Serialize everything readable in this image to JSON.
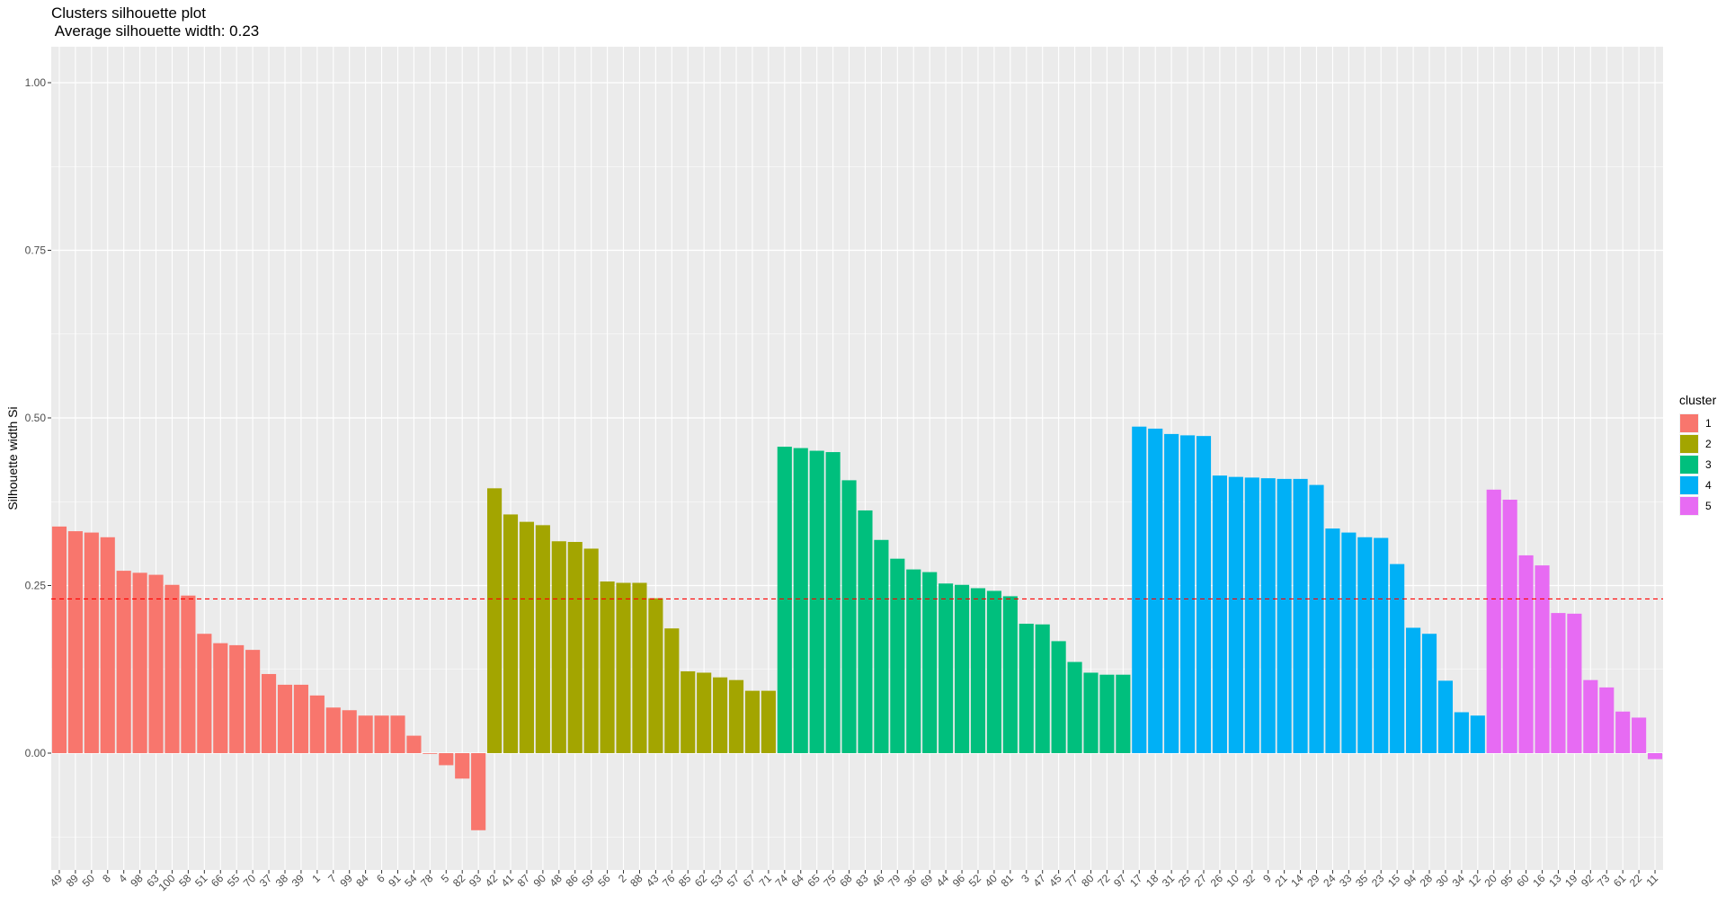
{
  "chart_data": {
    "type": "bar",
    "title": "Clusters silhouette plot",
    "subtitle": " Average silhouette width: 0.23",
    "xlabel": "",
    "ylabel": "Silhouette width Si",
    "ylim": [
      -0.115,
      1.05
    ],
    "yticks": [
      "0.00",
      "0.25",
      "0.50",
      "0.75",
      "1.00"
    ],
    "ytick_values": [
      0,
      0.25,
      0.5,
      0.75,
      1.0
    ],
    "average_line": 0.23,
    "grid": true,
    "legend": {
      "title": "cluster",
      "placement": "right",
      "entries": [
        {
          "label": "1",
          "color": "#F8766D"
        },
        {
          "label": "2",
          "color": "#A3A500"
        },
        {
          "label": "3",
          "color": "#00BF7D"
        },
        {
          "label": "4",
          "color": "#00B0F6"
        },
        {
          "label": "5",
          "color": "#E76BF3"
        }
      ]
    },
    "categories": [
      "49",
      "89",
      "50",
      "8",
      "4",
      "98",
      "63",
      "100",
      "58",
      "51",
      "66",
      "55",
      "70",
      "37",
      "38",
      "39",
      "1",
      "7",
      "99",
      "84",
      "6",
      "91",
      "54",
      "78",
      "5",
      "82",
      "93",
      "42",
      "41",
      "87",
      "90",
      "48",
      "86",
      "59",
      "56",
      "2",
      "88",
      "43",
      "76",
      "85",
      "62",
      "53",
      "57",
      "67",
      "71",
      "74",
      "64",
      "65",
      "75",
      "68",
      "83",
      "46",
      "79",
      "36",
      "69",
      "44",
      "96",
      "52",
      "40",
      "81",
      "3",
      "47",
      "45",
      "77",
      "80",
      "72",
      "97",
      "17",
      "18",
      "31",
      "25",
      "27",
      "26",
      "10",
      "32",
      "9",
      "21",
      "14",
      "29",
      "24",
      "33",
      "35",
      "23",
      "15",
      "94",
      "28",
      "30",
      "34",
      "12",
      "20",
      "95",
      "60",
      "16",
      "13",
      "19",
      "92",
      "73",
      "61",
      "22",
      "11"
    ],
    "values": [
      0.338,
      0.331,
      0.329,
      0.322,
      0.272,
      0.269,
      0.266,
      0.251,
      0.235,
      0.178,
      0.164,
      0.161,
      0.154,
      0.118,
      0.102,
      0.102,
      0.086,
      0.068,
      0.064,
      0.056,
      0.056,
      0.056,
      0.026,
      0.0,
      -0.018,
      -0.038,
      -0.115,
      0.395,
      0.356,
      0.345,
      0.34,
      0.316,
      0.315,
      0.305,
      0.256,
      0.254,
      0.254,
      0.231,
      0.186,
      0.122,
      0.12,
      0.113,
      0.109,
      0.093,
      0.093,
      0.457,
      0.455,
      0.451,
      0.449,
      0.407,
      0.362,
      0.318,
      0.29,
      0.274,
      0.27,
      0.253,
      0.251,
      0.246,
      0.242,
      0.234,
      0.193,
      0.192,
      0.167,
      0.136,
      0.12,
      0.117,
      0.117,
      0.487,
      0.484,
      0.476,
      0.474,
      0.473,
      0.414,
      0.412,
      0.411,
      0.41,
      0.409,
      0.409,
      0.4,
      0.335,
      0.329,
      0.322,
      0.321,
      0.282,
      0.187,
      0.178,
      0.108,
      0.061,
      0.056,
      0.393,
      0.378,
      0.295,
      0.28,
      0.209,
      0.208,
      0.109,
      0.098,
      0.062,
      0.053,
      -0.009
    ],
    "clusters": [
      1,
      1,
      1,
      1,
      1,
      1,
      1,
      1,
      1,
      1,
      1,
      1,
      1,
      1,
      1,
      1,
      1,
      1,
      1,
      1,
      1,
      1,
      1,
      1,
      1,
      1,
      1,
      2,
      2,
      2,
      2,
      2,
      2,
      2,
      2,
      2,
      2,
      2,
      2,
      2,
      2,
      2,
      2,
      2,
      2,
      3,
      3,
      3,
      3,
      3,
      3,
      3,
      3,
      3,
      3,
      3,
      3,
      3,
      3,
      3,
      3,
      3,
      3,
      3,
      3,
      3,
      3,
      4,
      4,
      4,
      4,
      4,
      4,
      4,
      4,
      4,
      4,
      4,
      4,
      4,
      4,
      4,
      4,
      4,
      4,
      4,
      4,
      4,
      4,
      5,
      5,
      5,
      5,
      5,
      5,
      5,
      5,
      5,
      5,
      5
    ],
    "average_line_color": "#FF0000",
    "panel_background": "#EBEBEB",
    "grid_color": "#FFFFFF"
  }
}
